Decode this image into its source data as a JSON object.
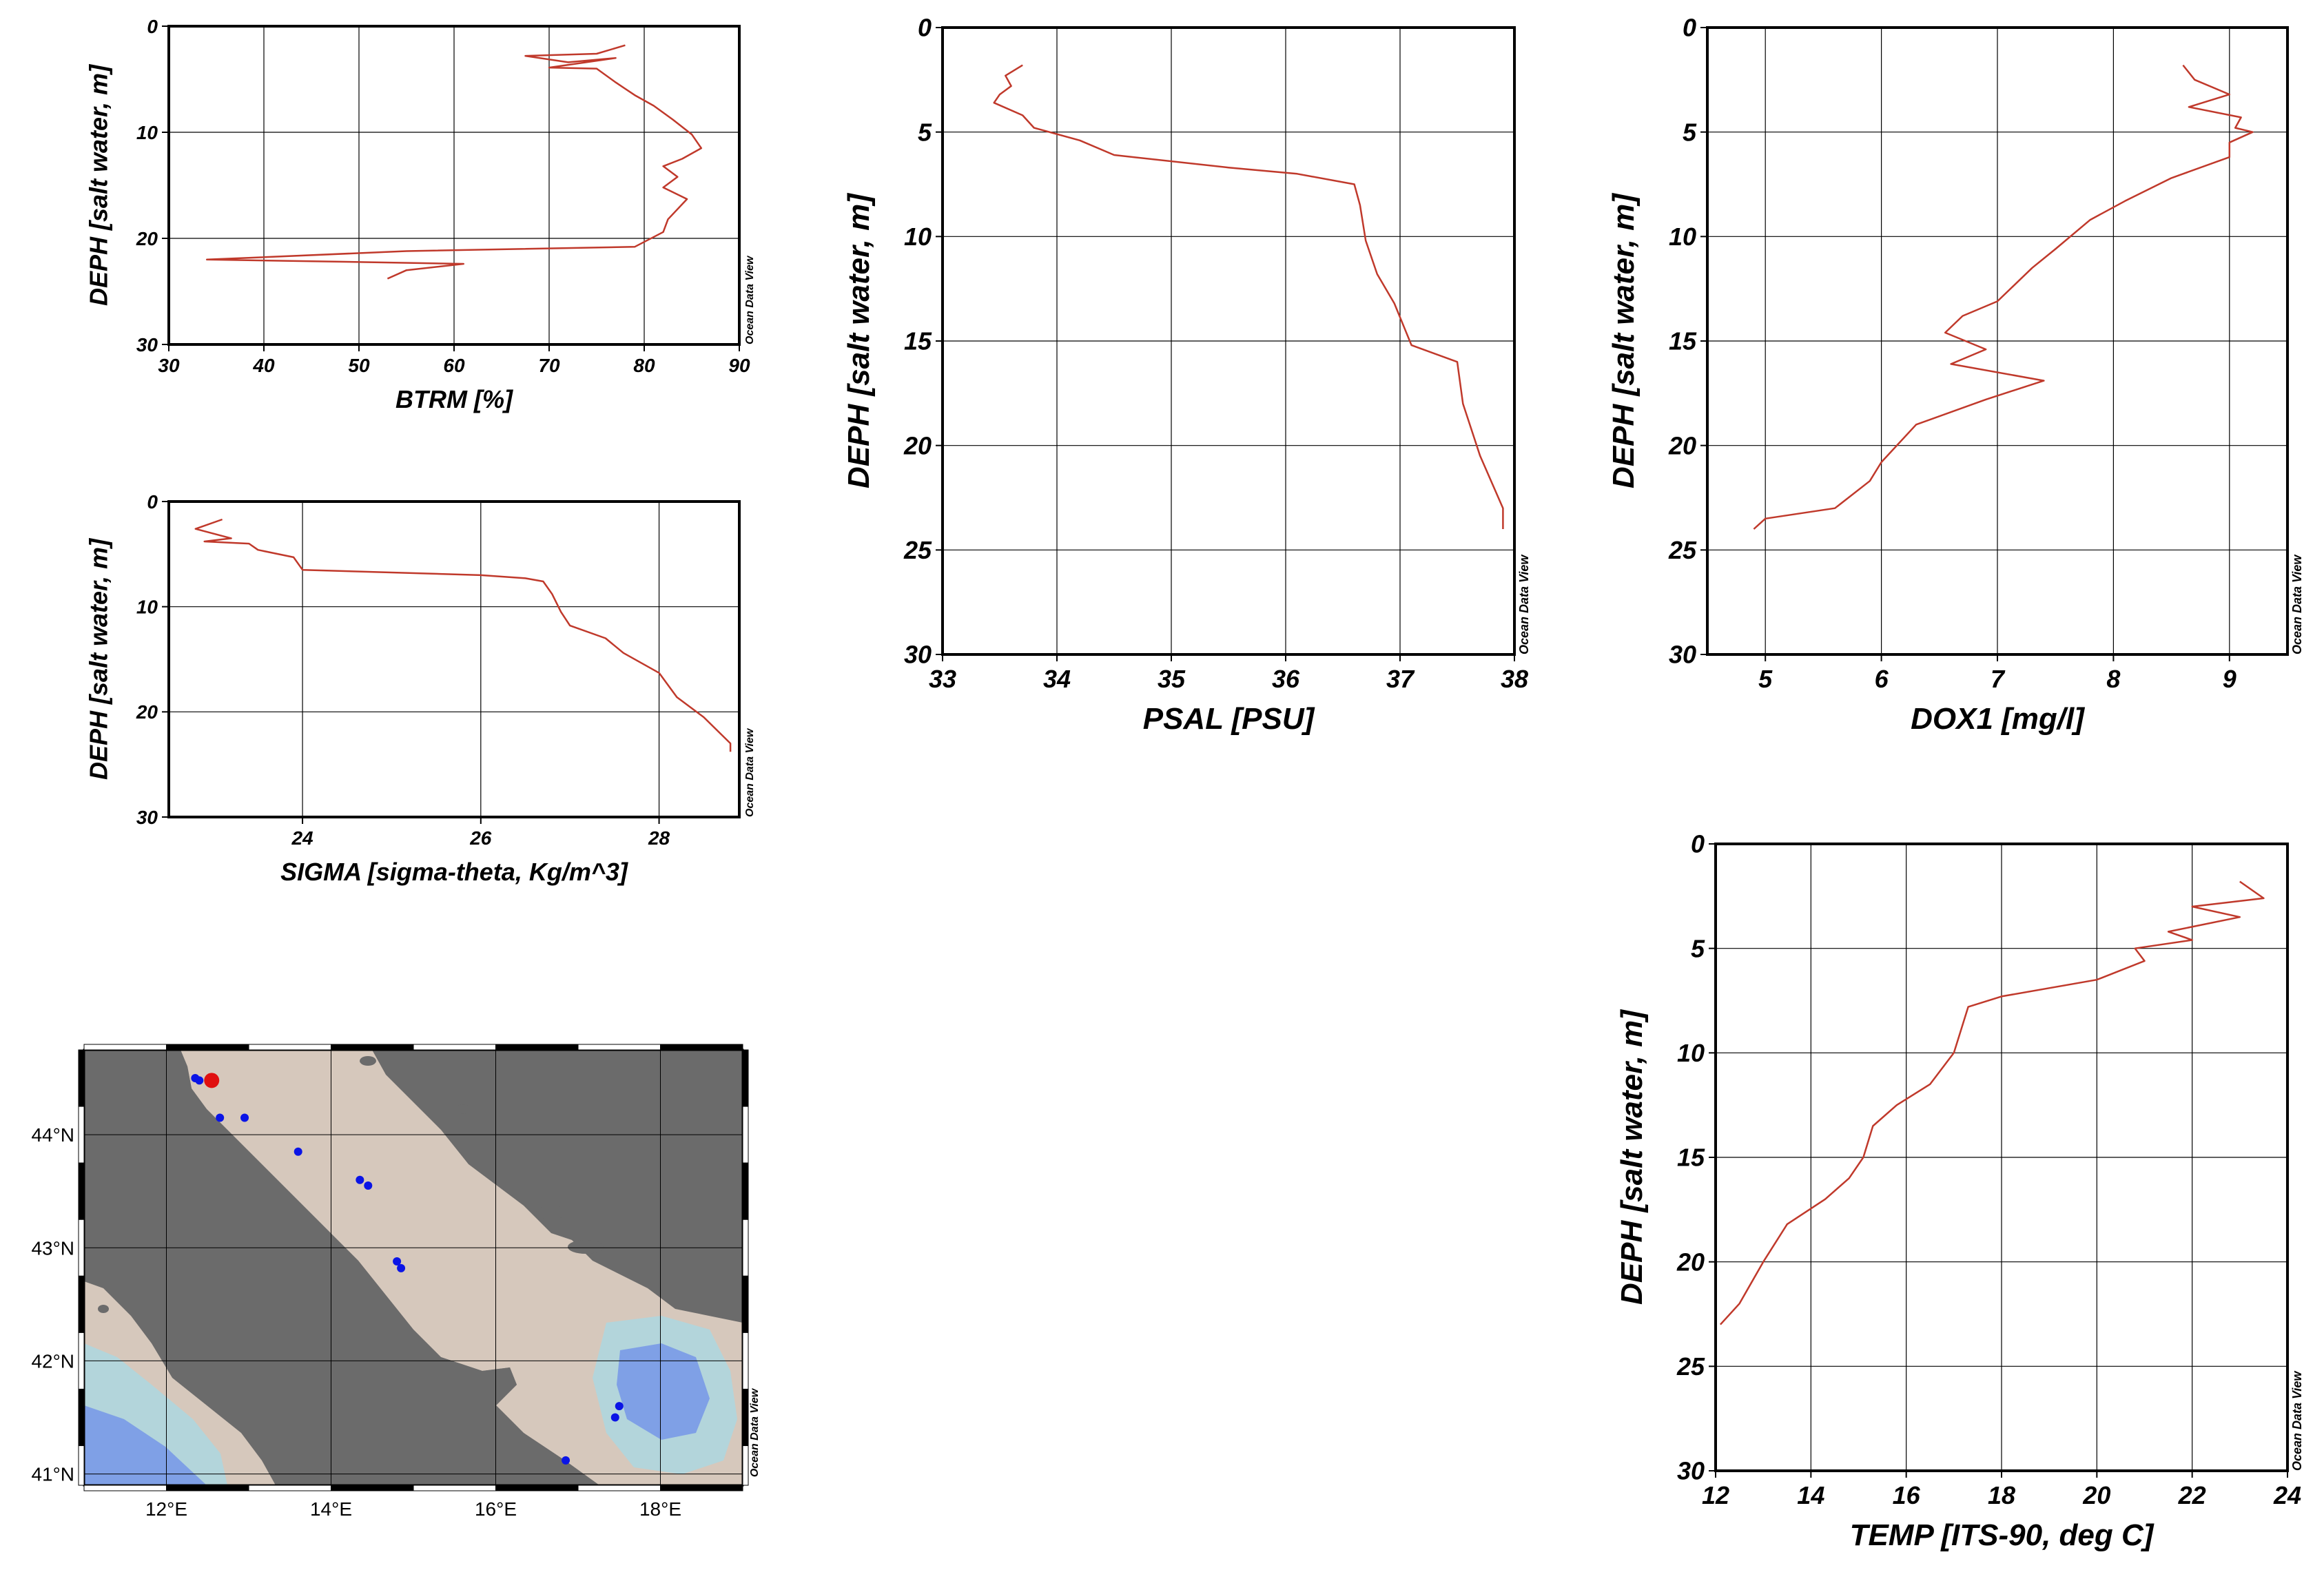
{
  "credit": "Ocean Data View",
  "colors": {
    "profile": "#c0392b",
    "grid": "#000000",
    "land": "#6b6b6b",
    "sea_shallow": "#d6c8bc",
    "sea_mid": "#c9b8aa",
    "sea_deep": "#b3d5db",
    "sea_deepest": "#7fa0e6",
    "station": "#0a14e6",
    "selected_station": "#e01010"
  },
  "chart_data": [
    {
      "type": "line",
      "id": "btrm",
      "xlabel": "BTRM [%]",
      "ylabel": "DEPH [salt water, m]",
      "xlim": [
        30,
        90
      ],
      "ylim": [
        30,
        0
      ],
      "xticks": [
        "30",
        "40",
        "50",
        "60",
        "70",
        "80",
        "90"
      ],
      "yticks": [
        "0",
        "10",
        "20",
        "30"
      ],
      "grid": true,
      "points": [
        [
          78,
          1.8
        ],
        [
          75,
          2.6
        ],
        [
          67.5,
          2.8
        ],
        [
          72,
          3.4
        ],
        [
          77,
          3.0
        ],
        [
          70,
          3.9
        ],
        [
          75,
          4.0
        ],
        [
          77,
          5.3
        ],
        [
          79,
          6.5
        ],
        [
          81,
          7.5
        ],
        [
          83,
          8.8
        ],
        [
          85,
          10.2
        ],
        [
          86,
          11.5
        ],
        [
          84,
          12.5
        ],
        [
          82,
          13.2
        ],
        [
          83.5,
          14.2
        ],
        [
          82,
          15.2
        ],
        [
          84.5,
          16.3
        ],
        [
          82.5,
          18.2
        ],
        [
          82,
          19.4
        ],
        [
          79,
          20.8
        ],
        [
          55,
          21.2
        ],
        [
          34,
          22
        ],
        [
          48,
          22.2
        ],
        [
          61,
          22.4
        ],
        [
          55,
          23.0
        ],
        [
          53,
          23.8
        ]
      ]
    },
    {
      "type": "line",
      "id": "sigma",
      "xlabel": "SIGMA [sigma-theta, Kg/m^3]",
      "ylabel": "DEPH [salt water, m]",
      "xlim": [
        22.5,
        28.9
      ],
      "ylim": [
        30,
        0
      ],
      "xticks": [
        "24",
        "26",
        "28"
      ],
      "yticks": [
        "0",
        "10",
        "20",
        "30"
      ],
      "grid": true,
      "points": [
        [
          23.1,
          1.7
        ],
        [
          22.8,
          2.6
        ],
        [
          23.2,
          3.5
        ],
        [
          22.9,
          3.8
        ],
        [
          23.4,
          4.0
        ],
        [
          23.5,
          4.6
        ],
        [
          23.9,
          5.3
        ],
        [
          24.0,
          6.5
        ],
        [
          26.0,
          7.0
        ],
        [
          26.5,
          7.3
        ],
        [
          26.7,
          7.6
        ],
        [
          26.8,
          8.8
        ],
        [
          26.9,
          10.5
        ],
        [
          27.0,
          11.8
        ],
        [
          27.4,
          13.0
        ],
        [
          27.6,
          14.4
        ],
        [
          28.0,
          16.3
        ],
        [
          28.2,
          18.6
        ],
        [
          28.5,
          20.5
        ],
        [
          28.8,
          23.0
        ],
        [
          28.8,
          23.8
        ]
      ]
    },
    {
      "type": "line",
      "id": "psal",
      "xlabel": "PSAL [PSU]",
      "ylabel": "DEPH [salt water, m]",
      "xlim": [
        33,
        38
      ],
      "ylim": [
        30,
        0
      ],
      "xticks": [
        "33",
        "34",
        "35",
        "36",
        "37",
        "38"
      ],
      "yticks": [
        "0",
        "5",
        "10",
        "15",
        "20",
        "25",
        "30"
      ],
      "grid": true,
      "points": [
        [
          33.7,
          1.8
        ],
        [
          33.55,
          2.3
        ],
        [
          33.6,
          2.8
        ],
        [
          33.5,
          3.2
        ],
        [
          33.45,
          3.6
        ],
        [
          33.7,
          4.2
        ],
        [
          33.8,
          4.8
        ],
        [
          34.2,
          5.4
        ],
        [
          34.5,
          6.1
        ],
        [
          35.5,
          6.7
        ],
        [
          36.1,
          7.0
        ],
        [
          36.6,
          7.5
        ],
        [
          36.65,
          8.5
        ],
        [
          36.7,
          10.2
        ],
        [
          36.8,
          11.8
        ],
        [
          36.95,
          13.2
        ],
        [
          37.1,
          15.2
        ],
        [
          37.5,
          16.0
        ],
        [
          37.55,
          18.0
        ],
        [
          37.7,
          20.5
        ],
        [
          37.9,
          23.0
        ],
        [
          37.9,
          24.0
        ]
      ]
    },
    {
      "type": "line",
      "id": "dox1",
      "xlabel": "DOX1 [mg/l]",
      "ylabel": "DEPH [salt water, m]",
      "xlim": [
        4.5,
        9.5
      ],
      "ylim": [
        30,
        0
      ],
      "xticks": [
        "5",
        "6",
        "7",
        "8",
        "9"
      ],
      "yticks": [
        "0",
        "5",
        "10",
        "15",
        "20",
        "25",
        "30"
      ],
      "grid": true,
      "points": [
        [
          8.6,
          1.8
        ],
        [
          8.7,
          2.5
        ],
        [
          9.0,
          3.2
        ],
        [
          8.65,
          3.8
        ],
        [
          9.1,
          4.3
        ],
        [
          9.05,
          4.8
        ],
        [
          9.2,
          5.0
        ],
        [
          9.0,
          5.5
        ],
        [
          9.0,
          6.2
        ],
        [
          8.5,
          7.2
        ],
        [
          8.1,
          8.3
        ],
        [
          7.8,
          9.2
        ],
        [
          7.5,
          10.6
        ],
        [
          7.3,
          11.5
        ],
        [
          7.0,
          13.1
        ],
        [
          6.7,
          13.8
        ],
        [
          6.55,
          14.6
        ],
        [
          6.9,
          15.4
        ],
        [
          6.6,
          16.1
        ],
        [
          7.4,
          16.9
        ],
        [
          6.9,
          17.8
        ],
        [
          6.3,
          19.0
        ],
        [
          6.0,
          20.8
        ],
        [
          5.9,
          21.7
        ],
        [
          5.6,
          23.0
        ],
        [
          5.0,
          23.5
        ],
        [
          4.9,
          24.0
        ]
      ]
    },
    {
      "type": "line",
      "id": "temp",
      "xlabel": "TEMP [ITS-90, deg C]",
      "ylabel": "DEPH [salt water, m]",
      "xlim": [
        12,
        24
      ],
      "ylim": [
        30,
        0
      ],
      "xticks": [
        "12",
        "14",
        "16",
        "18",
        "20",
        "22",
        "24"
      ],
      "yticks": [
        "0",
        "5",
        "10",
        "15",
        "20",
        "25",
        "30"
      ],
      "grid": true,
      "points": [
        [
          23.0,
          1.8
        ],
        [
          23.5,
          2.6
        ],
        [
          22.0,
          3.0
        ],
        [
          23.0,
          3.5
        ],
        [
          21.5,
          4.2
        ],
        [
          22.0,
          4.6
        ],
        [
          20.8,
          5.0
        ],
        [
          21.0,
          5.6
        ],
        [
          20.0,
          6.5
        ],
        [
          18.0,
          7.3
        ],
        [
          17.3,
          7.8
        ],
        [
          17.0,
          10.0
        ],
        [
          16.5,
          11.5
        ],
        [
          15.8,
          12.5
        ],
        [
          15.3,
          13.5
        ],
        [
          15.1,
          15.0
        ],
        [
          14.8,
          16.0
        ],
        [
          14.3,
          17.0
        ],
        [
          13.5,
          18.2
        ],
        [
          13.0,
          20.0
        ],
        [
          12.5,
          22.0
        ],
        [
          12.1,
          23.0
        ]
      ]
    }
  ],
  "map": {
    "x_ticks": [
      "12°E",
      "14°E",
      "16°E",
      "18°E"
    ],
    "y_ticks": [
      "44°N",
      "43°N",
      "42°N",
      "41°N"
    ],
    "lon_range": [
      11,
      19
    ],
    "lat_range": [
      40.9,
      44.75
    ],
    "stations": [
      [
        12.35,
        44.5
      ],
      [
        12.4,
        44.48
      ],
      [
        12.65,
        44.15
      ],
      [
        12.95,
        44.15
      ],
      [
        13.6,
        43.85
      ],
      [
        14.35,
        43.6
      ],
      [
        14.45,
        43.55
      ],
      [
        14.8,
        42.88
      ],
      [
        14.85,
        42.82
      ],
      [
        16.85,
        41.12
      ],
      [
        17.5,
        41.6
      ],
      [
        17.45,
        41.5
      ]
    ],
    "selected_station": [
      12.55,
      44.48
    ]
  }
}
